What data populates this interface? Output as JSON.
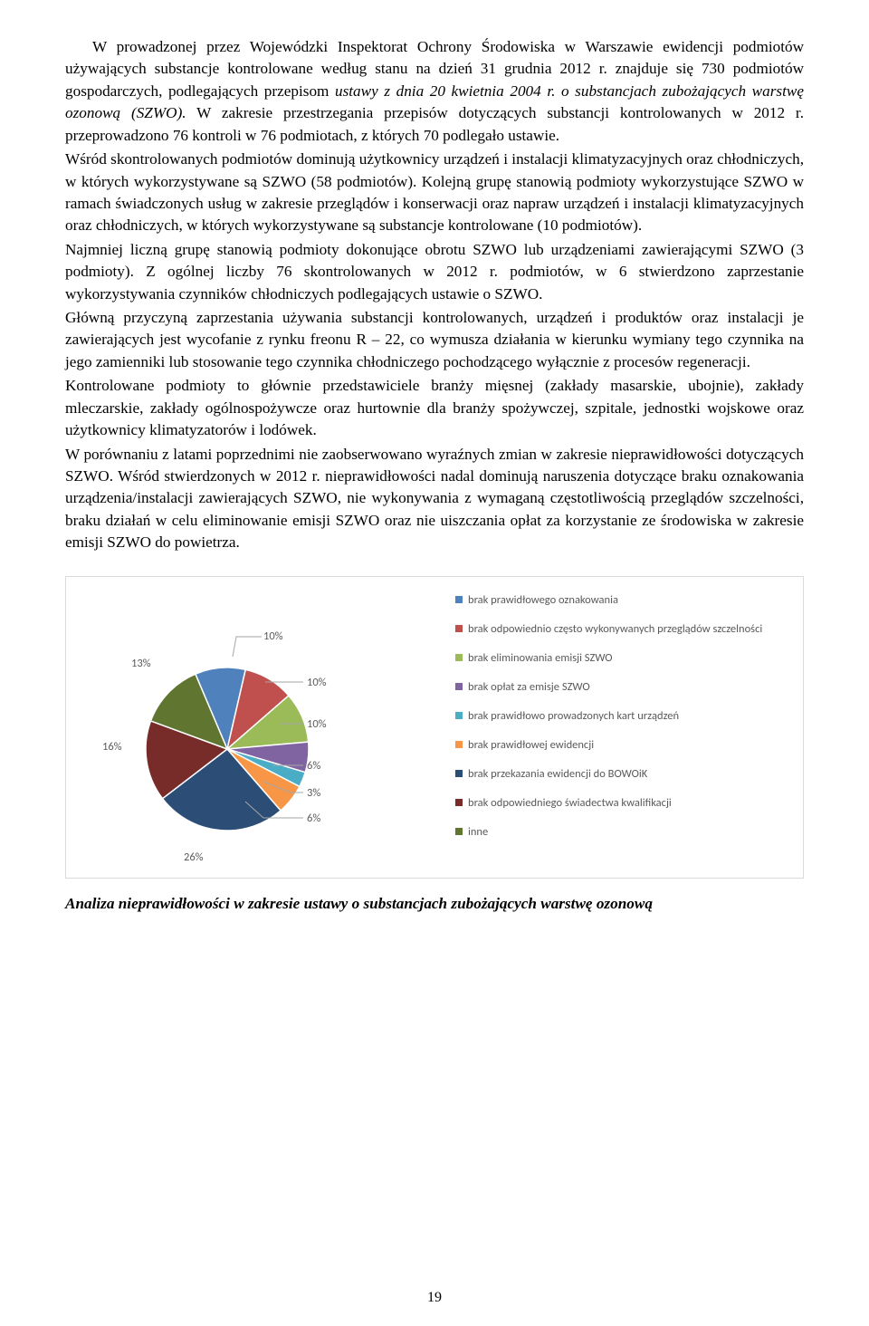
{
  "paragraphs": {
    "p1": "W prowadzonej przez Wojewódzki Inspektorat Ochrony Środowiska w Warszawie ewidencji podmiotów używających substancje kontrolowane według stanu na dzień 31 grudnia 2012 r. znajduje się 730 podmiotów gospodarczych, podlegających przepisom ",
    "p1_em": "ustawy z dnia 20 kwietnia 2004 r. o substancjach zubożających warstwę ozonową (SZWO).",
    "p1b": " W zakresie przestrzegania przepisów dotyczących substancji kontrolowanych w 2012 r. przeprowadzono 76 kontroli w 76 podmiotach, z których 70 podlegało ustawie.",
    "p2": "Wśród skontrolowanych podmiotów dominują użytkownicy urządzeń i instalacji klimatyzacyjnych oraz chłodniczych, w których wykorzystywane są SZWO (58 podmiotów). Kolejną grupę stanowią podmioty wykorzystujące  SZWO w ramach świadczonych usług w zakresie przeglądów i konserwacji oraz napraw urządzeń i instalacji klimatyzacyjnych oraz chłodniczych, w których wykorzystywane są substancje kontrolowane (10 podmiotów).",
    "p3": "Najmniej liczną grupę stanowią podmioty dokonujące obrotu SZWO lub urządzeniami zawierającymi SZWO (3 podmioty). Z ogólnej liczby 76 skontrolowanych w 2012 r. podmiotów, w 6 stwierdzono zaprzestanie wykorzystywania czynników chłodniczych podlegających ustawie o SZWO.",
    "p4": "Główną przyczyną zaprzestania używania substancji kontrolowanych, urządzeń i produktów oraz instalacji je zawierających jest wycofanie z rynku freonu R – 22, co wymusza działania w kierunku wymiany tego czynnika na jego zamienniki lub stosowanie tego czynnika chłodniczego pochodzącego wyłącznie z procesów regeneracji.",
    "p5": "Kontrolowane podmioty to głównie przedstawiciele branży mięsnej (zakłady masarskie, ubojnie), zakłady mleczarskie, zakłady ogólnospożywcze oraz hurtownie dla branży spożywczej, szpitale, jednostki wojskowe oraz użytkownicy klimatyzatorów i lodówek.",
    "p6": "W porównaniu z latami poprzednimi nie zaobserwowano wyraźnych zmian w zakresie nieprawidłowości dotyczących SZWO. Wśród stwierdzonych w 2012 r. nieprawidłowości nadal dominują naruszenia dotyczące braku oznakowania urządzenia/instalacji zawierających SZWO, nie wykonywania z wymaganą częstotliwością przeglądów szczelności, braku działań w celu eliminowanie emisji SZWO oraz nie uiszczania opłat za korzystanie ze środowiska w zakresie emisji SZWO do powietrza."
  },
  "chart": {
    "type": "pie",
    "background_color": "#ffffff",
    "border_color": "#d9d9d9",
    "label_font": "Calibri",
    "label_fontsize": 12.5,
    "label_color": "#595959",
    "slices": [
      {
        "label": "brak prawidłowego oznakowania",
        "value": 10,
        "pct": "10%",
        "color": "#4f81bd"
      },
      {
        "label": "brak odpowiednio często wykonywanych przeglądów szczelności",
        "value": 10,
        "pct": "10%",
        "color": "#c0504d"
      },
      {
        "label": "brak eliminowania emisji SZWO",
        "value": 10,
        "pct": "10%",
        "color": "#9bbb59"
      },
      {
        "label": "brak opłat za emisje SZWO",
        "value": 6,
        "pct": "6%",
        "color": "#8064a2"
      },
      {
        "label": "brak prawidłowo prowadzonych kart urządzeń",
        "value": 3,
        "pct": "3%",
        "color": "#4bacc6"
      },
      {
        "label": "brak prawidłowej ewidencji",
        "value": 6,
        "pct": "6%",
        "color": "#f79646"
      },
      {
        "label": "brak przekazania ewidencji do BOWOiK",
        "value": 26,
        "pct": "26%",
        "color": "#2c4d75"
      },
      {
        "label": "brak odpowiedniego świadectwa kwalifikacji",
        "value": 16,
        "pct": "16%",
        "color": "#772c2a"
      },
      {
        "label": "inne",
        "value": 13,
        "pct": "13%",
        "color": "#5f7530"
      }
    ],
    "pie_labels": {
      "l10a": "10%",
      "l10b": "10%",
      "l10c": "10%",
      "l6a": "6%",
      "l3": "3%",
      "l6b": "6%",
      "l26": "26%",
      "l16": "16%",
      "l13": "13%"
    }
  },
  "caption": "Analiza nieprawidłowości w zakresie ustawy o substancjach zubożających warstwę ozonową",
  "page_number": "19"
}
